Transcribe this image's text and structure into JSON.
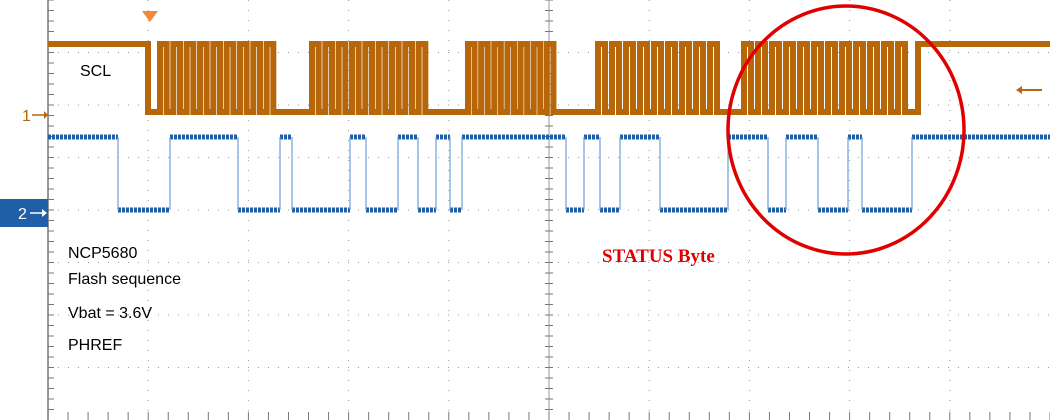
{
  "channels": {
    "ch1": {
      "number": "1",
      "name": "SCL",
      "color": "#b8660a"
    },
    "ch2": {
      "number": "2",
      "color": "#1f5fa8"
    }
  },
  "notes": {
    "line1": "NCP5680",
    "line2": "Flash sequence",
    "line3": "Vbat = 3.6V",
    "line4": "PHREF"
  },
  "annotation": {
    "text": "STATUS Byte",
    "color": "#e10000"
  },
  "icons": {
    "trigger": "trigger-marker-icon",
    "right_arrow": "left-arrow-icon"
  }
}
